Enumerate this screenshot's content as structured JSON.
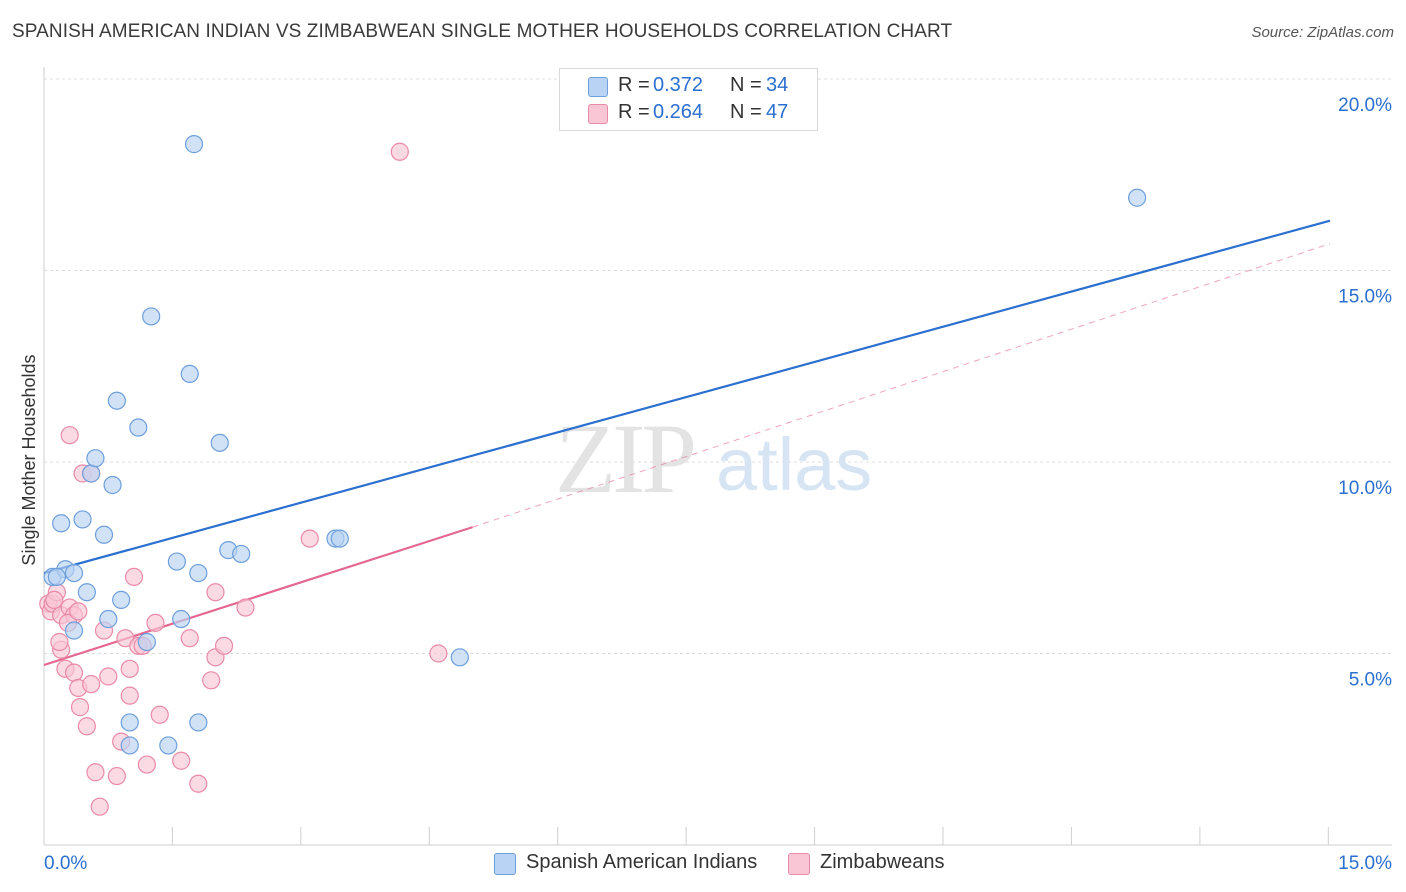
{
  "header": {
    "title": "SPANISH AMERICAN INDIAN VS ZIMBABWEAN SINGLE MOTHER HOUSEHOLDS CORRELATION CHART",
    "source": "Source: ZipAtlas.com"
  },
  "legend": {
    "series": [
      {
        "r_label": "R =",
        "r_value": "0.372",
        "n_label": "N =",
        "n_value": "34"
      },
      {
        "r_label": "R =",
        "r_value": "0.264",
        "n_label": "N =",
        "n_value": "47"
      }
    ]
  },
  "watermark": {
    "zip": "ZIP",
    "atlas": "atlas"
  },
  "colors": {
    "blue_fill": "#b8d3f3",
    "blue_stroke": "#6d9fdc",
    "blue_line": "#2b6fcf",
    "pink_fill": "#f9c6d5",
    "pink_stroke": "#e98aa8",
    "pink_line": "#e4678f",
    "value_text": "#2b6fcf",
    "grid": "#dcdcdc"
  },
  "chart_data": {
    "type": "scatter",
    "title": "SPANISH AMERICAN INDIAN VS ZIMBABWEAN SINGLE MOTHER HOUSEHOLDS CORRELATION CHART",
    "xlabel": "",
    "ylabel": "Single Mother Households",
    "xlim": [
      0,
      15
    ],
    "ylim": [
      0,
      20
    ],
    "x_tick_labels": [
      "0.0%",
      "15.0%"
    ],
    "y_tick_labels": [
      {
        "value": 5,
        "label": "5.0%"
      },
      {
        "value": 10,
        "label": "10.0%"
      },
      {
        "value": 15,
        "label": "15.0%"
      },
      {
        "value": 20,
        "label": "20.0%"
      }
    ],
    "series": [
      {
        "name": "Spanish American Indians",
        "r": 0.372,
        "n": 34,
        "points": [
          [
            0.1,
            7.0
          ],
          [
            0.2,
            8.4
          ],
          [
            0.25,
            7.2
          ],
          [
            0.35,
            7.1
          ],
          [
            0.35,
            5.6
          ],
          [
            0.45,
            8.5
          ],
          [
            0.5,
            6.6
          ],
          [
            0.55,
            9.7
          ],
          [
            0.6,
            10.1
          ],
          [
            0.7,
            8.1
          ],
          [
            0.75,
            5.9
          ],
          [
            0.8,
            9.4
          ],
          [
            0.85,
            11.6
          ],
          [
            0.9,
            6.4
          ],
          [
            1.0,
            3.2
          ],
          [
            1.0,
            2.6
          ],
          [
            1.1,
            10.9
          ],
          [
            1.2,
            5.3
          ],
          [
            1.25,
            13.8
          ],
          [
            1.45,
            2.6
          ],
          [
            1.55,
            7.4
          ],
          [
            1.6,
            5.9
          ],
          [
            1.7,
            12.3
          ],
          [
            1.75,
            18.3
          ],
          [
            1.8,
            7.1
          ],
          [
            1.8,
            3.2
          ],
          [
            2.05,
            10.5
          ],
          [
            2.15,
            7.7
          ],
          [
            2.3,
            7.6
          ],
          [
            3.4,
            8.0
          ],
          [
            3.45,
            8.0
          ],
          [
            4.85,
            4.9
          ],
          [
            12.75,
            16.9
          ],
          [
            0.15,
            7.0
          ]
        ]
      },
      {
        "name": "Zimbabweans",
        "r": 0.264,
        "n": 47,
        "points": [
          [
            0.05,
            6.3
          ],
          [
            0.08,
            6.1
          ],
          [
            0.1,
            6.3
          ],
          [
            0.15,
            6.6
          ],
          [
            0.2,
            6.0
          ],
          [
            0.2,
            5.1
          ],
          [
            0.25,
            4.6
          ],
          [
            0.3,
            6.2
          ],
          [
            0.3,
            10.7
          ],
          [
            0.35,
            6.0
          ],
          [
            0.35,
            4.5
          ],
          [
            0.4,
            4.1
          ],
          [
            0.42,
            3.6
          ],
          [
            0.45,
            9.7
          ],
          [
            0.5,
            3.1
          ],
          [
            0.55,
            9.7
          ],
          [
            0.55,
            4.2
          ],
          [
            0.6,
            1.9
          ],
          [
            0.65,
            1.0
          ],
          [
            0.7,
            5.6
          ],
          [
            0.75,
            4.4
          ],
          [
            0.85,
            1.8
          ],
          [
            0.9,
            2.7
          ],
          [
            0.95,
            5.4
          ],
          [
            1.0,
            4.6
          ],
          [
            1.0,
            3.9
          ],
          [
            1.05,
            7.0
          ],
          [
            1.1,
            5.2
          ],
          [
            1.15,
            5.2
          ],
          [
            1.2,
            2.1
          ],
          [
            1.3,
            5.8
          ],
          [
            1.35,
            3.4
          ],
          [
            1.6,
            2.2
          ],
          [
            1.7,
            5.4
          ],
          [
            1.8,
            1.6
          ],
          [
            1.95,
            4.3
          ],
          [
            2.0,
            6.6
          ],
          [
            2.0,
            4.9
          ],
          [
            2.1,
            5.2
          ],
          [
            2.35,
            6.2
          ],
          [
            3.1,
            8.0
          ],
          [
            4.15,
            18.1
          ],
          [
            4.6,
            5.0
          ],
          [
            0.12,
            6.4
          ],
          [
            0.28,
            5.8
          ],
          [
            0.18,
            5.3
          ],
          [
            0.4,
            6.1
          ]
        ]
      }
    ],
    "trend_lines": [
      {
        "series": "Spanish American Indians",
        "x": [
          0,
          15
        ],
        "y": [
          7.1,
          16.3
        ],
        "style": "solid"
      },
      {
        "series": "Zimbabweans",
        "x": [
          0,
          5
        ],
        "y": [
          4.7,
          8.3
        ],
        "style": "solid"
      },
      {
        "series": "Zimbabweans",
        "x": [
          5,
          15
        ],
        "y": [
          8.3,
          15.7
        ],
        "style": "dashed"
      }
    ]
  }
}
